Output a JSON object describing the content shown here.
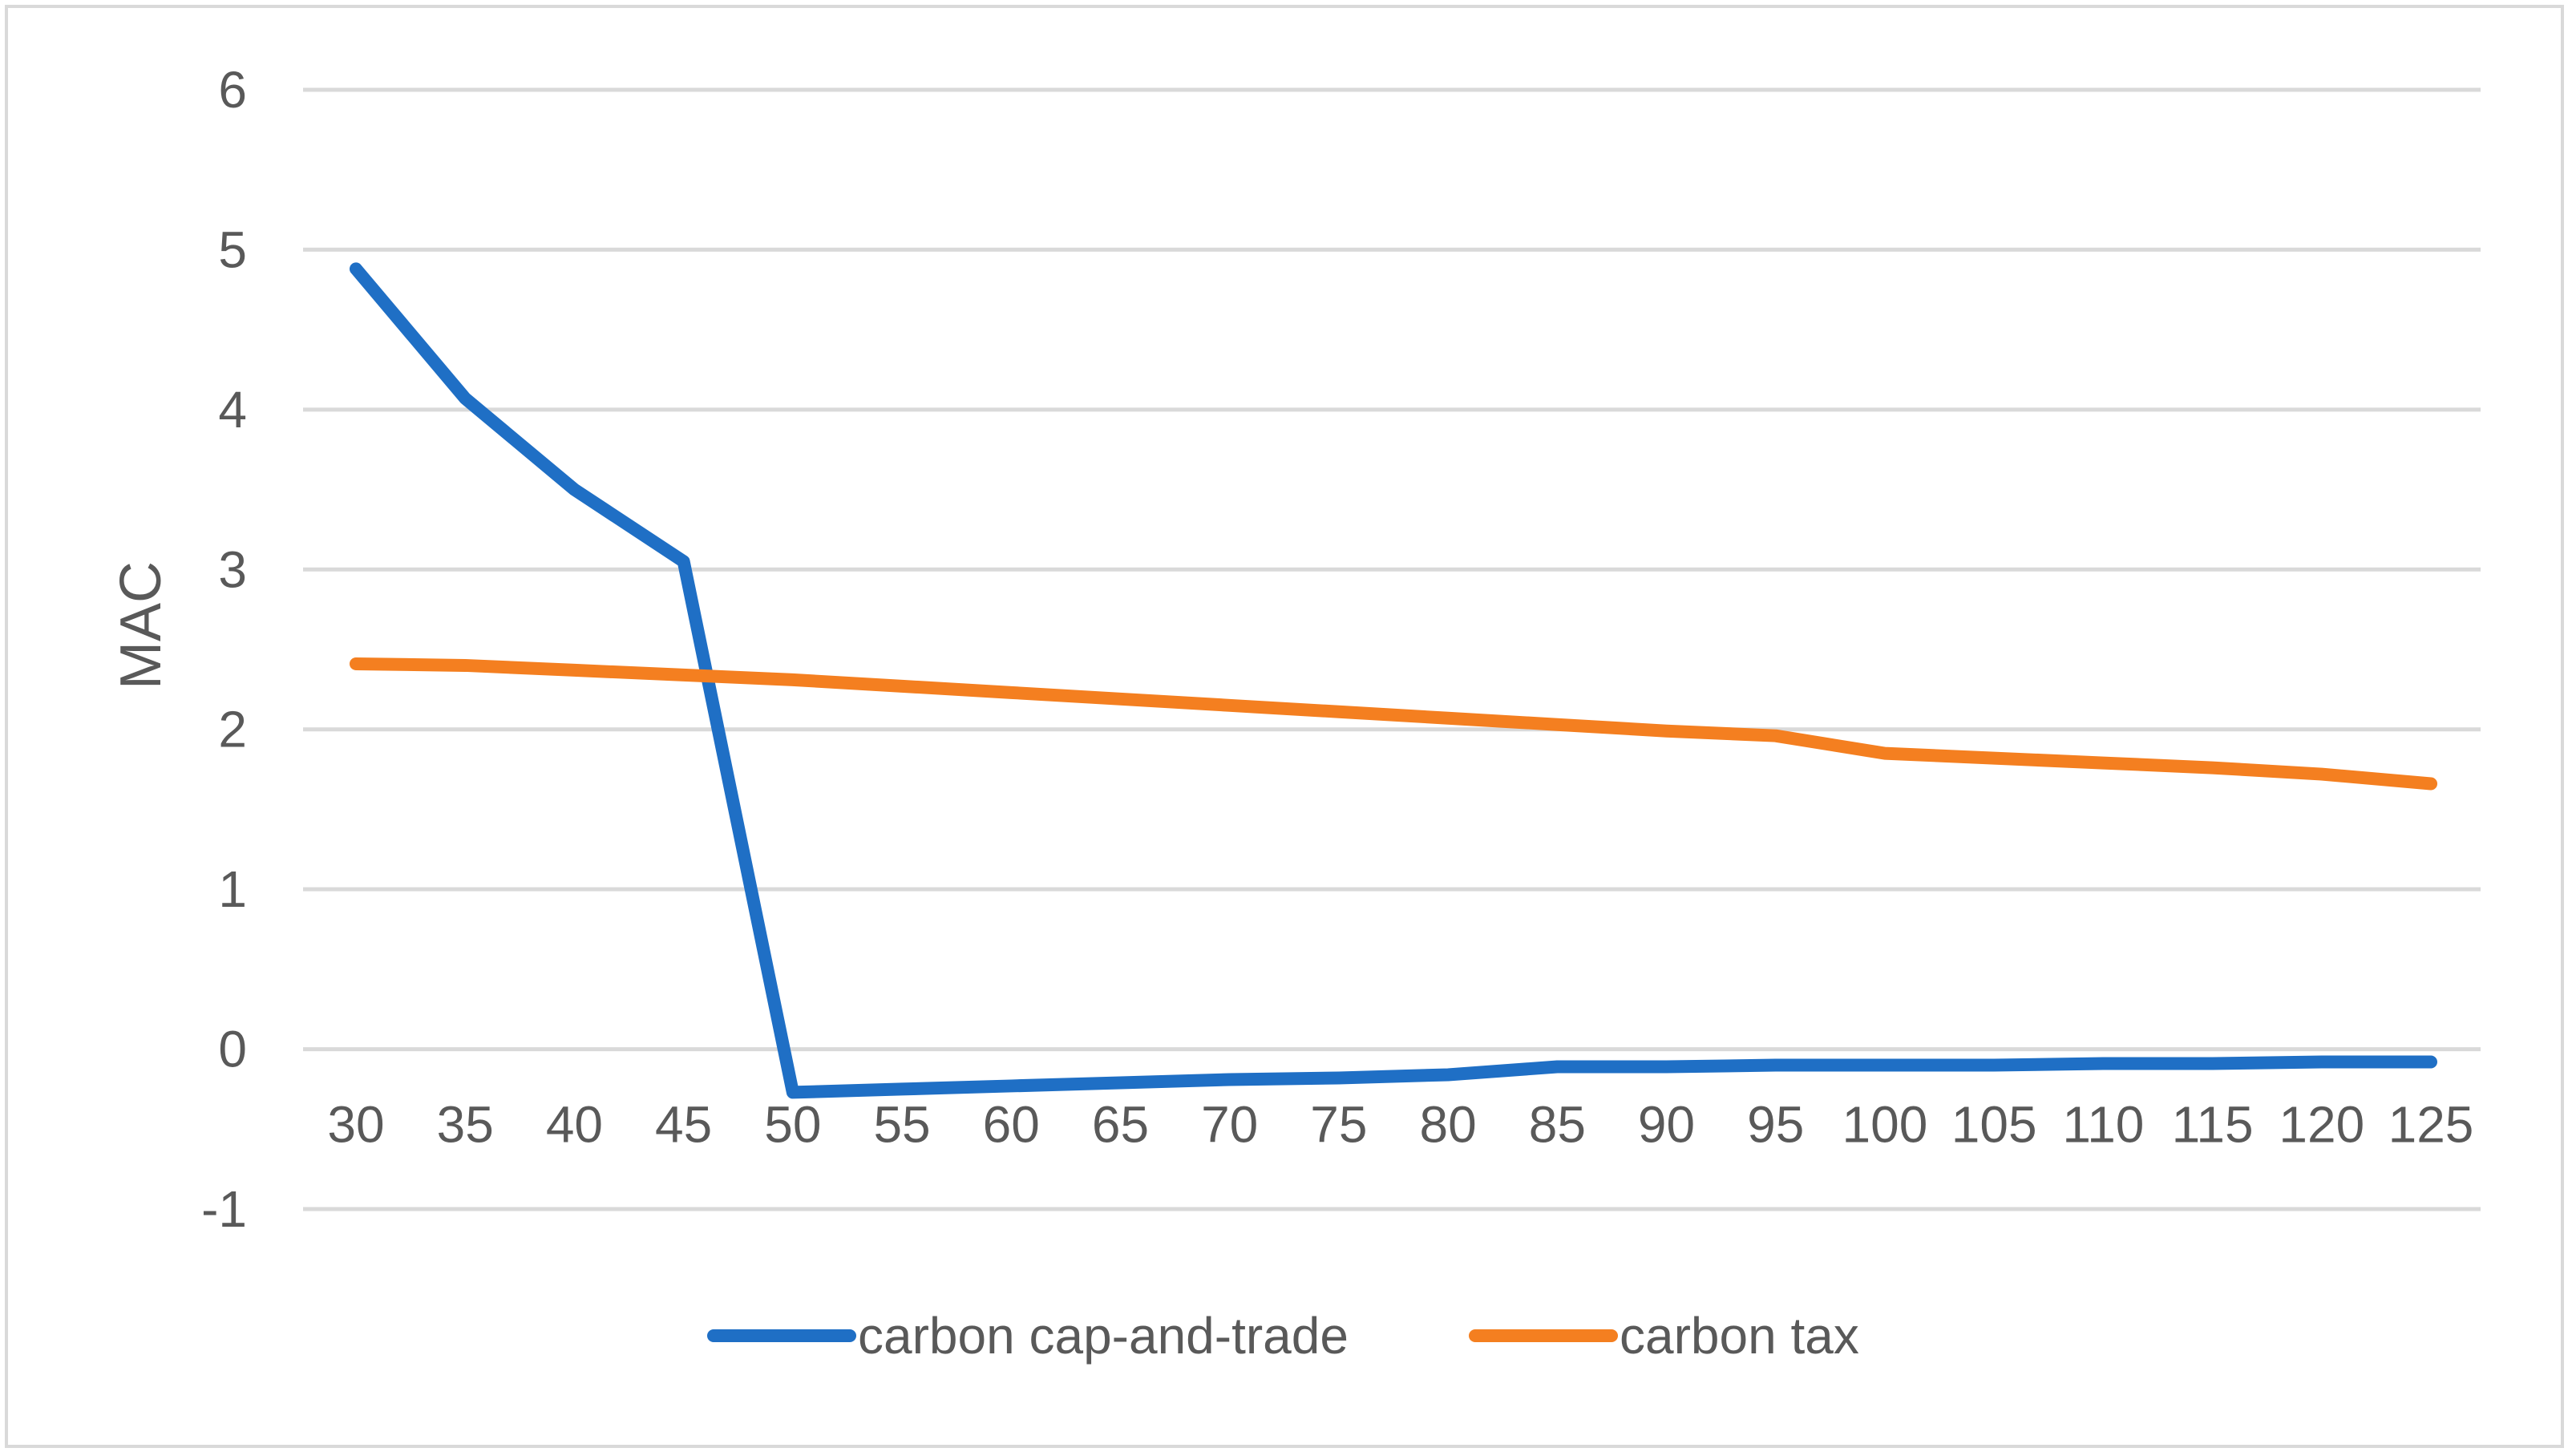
{
  "chart_data": {
    "type": "line",
    "title": "",
    "xlabel": "",
    "ylabel": "MAC",
    "ylim": [
      -1,
      6
    ],
    "yticks": [
      "-1",
      "0",
      "1",
      "2",
      "3",
      "4",
      "5",
      "6"
    ],
    "grid": true,
    "legend": "bottom",
    "x": [
      30,
      35,
      40,
      45,
      50,
      55,
      60,
      65,
      70,
      75,
      80,
      85,
      90,
      95,
      100,
      105,
      110,
      115,
      120,
      125
    ],
    "x_labels": [
      "30",
      "35",
      "40",
      "45",
      "50",
      "55",
      "60",
      "65",
      "70",
      "75",
      "80",
      "85",
      "90",
      "95",
      "100",
      "105",
      "110",
      "115",
      "120",
      "125"
    ],
    "series": [
      {
        "name": "carbon cap-and-trade",
        "color": "#1f6fc5",
        "values": [
          4.88,
          4.07,
          3.5,
          3.05,
          -0.27,
          -0.25,
          -0.23,
          -0.21,
          -0.19,
          -0.18,
          -0.16,
          -0.11,
          -0.11,
          -0.1,
          -0.1,
          -0.1,
          -0.09,
          -0.09,
          -0.08,
          -0.08
        ]
      },
      {
        "name": "carbon tax",
        "color": "#f47f20",
        "values": [
          2.41,
          2.4,
          2.37,
          2.34,
          2.31,
          2.27,
          2.23,
          2.19,
          2.15,
          2.11,
          2.07,
          2.03,
          1.99,
          1.96,
          1.85,
          1.82,
          1.79,
          1.76,
          1.72,
          1.66
        ]
      }
    ]
  }
}
